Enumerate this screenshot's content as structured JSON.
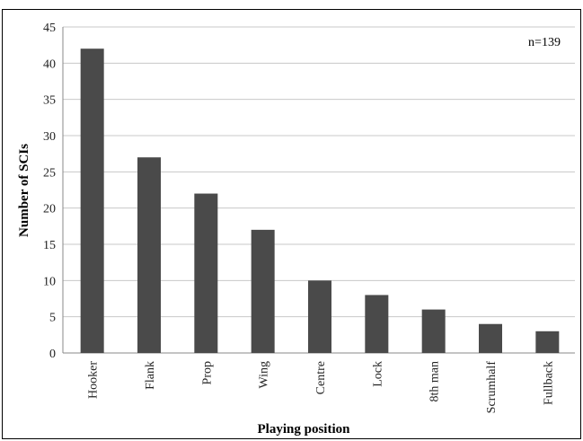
{
  "chart_data": {
    "type": "bar",
    "title": "",
    "xlabel": "Playing position",
    "ylabel": "Number of SCIs",
    "annotation": "n=139",
    "categories": [
      "Hooker",
      "Flank",
      "Prop",
      "Wing",
      "Centre",
      "Lock",
      "8th man",
      "Scrumhalf",
      "Fullback"
    ],
    "values": [
      42,
      27,
      22,
      17,
      10,
      8,
      6,
      4,
      3
    ],
    "ylim": [
      0,
      45
    ],
    "yticks": [
      0,
      5,
      10,
      15,
      20,
      25,
      30,
      35,
      40,
      45
    ],
    "grid": true,
    "legend": "none",
    "colors": {
      "bar": "#4a4a4a",
      "grid": "#c8c8c8",
      "axis": "#888888"
    }
  }
}
